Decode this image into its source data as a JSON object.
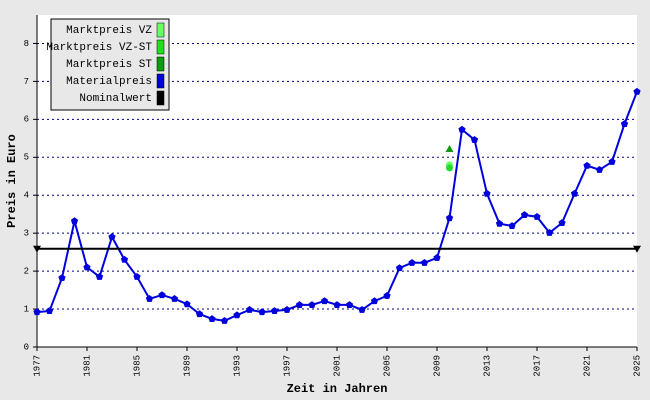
{
  "chart_data": {
    "type": "line",
    "x_label": "Zeit in Jahren",
    "y_label": "Preis in Euro",
    "xlim": [
      1977,
      2025
    ],
    "ylim": [
      0,
      8.75
    ],
    "xticks": [
      1977,
      1981,
      1985,
      1989,
      1993,
      1997,
      2001,
      2005,
      2009,
      2013,
      2017,
      2021,
      2025
    ],
    "yticks": [
      0,
      1,
      2,
      3,
      4,
      5,
      6,
      7,
      8
    ],
    "grid": true,
    "legend": "upper left",
    "series": [
      {
        "name": "Marktpreis VZ",
        "color": "#66ff66",
        "marker": "circle",
        "x": [
          2010
        ],
        "values": [
          4.8
        ]
      },
      {
        "name": "Marktpreis VZ-ST",
        "color": "#22dd22",
        "marker": "circle",
        "x": [
          2010
        ],
        "values": [
          4.72
        ]
      },
      {
        "name": "Marktpreis ST",
        "color": "#119911",
        "marker": "triangle",
        "x": [
          2010
        ],
        "values": [
          5.22
        ]
      },
      {
        "name": "Materialpreis",
        "color": "#0000dd",
        "marker": "pentagon",
        "x": [
          1977,
          1978,
          1979,
          1980,
          1981,
          1982,
          1983,
          1984,
          1985,
          1986,
          1987,
          1988,
          1989,
          1990,
          1991,
          1992,
          1993,
          1994,
          1995,
          1996,
          1997,
          1998,
          1999,
          2000,
          2001,
          2002,
          2003,
          2004,
          2005,
          2006,
          2007,
          2008,
          2009,
          2010,
          2011,
          2012,
          2013,
          2014,
          2015,
          2016,
          2017,
          2018,
          2019,
          2020,
          2021,
          2022,
          2023,
          2024,
          2025
        ],
        "values": [
          0.92,
          0.95,
          1.82,
          3.32,
          2.1,
          1.85,
          2.9,
          2.3,
          1.85,
          1.27,
          1.37,
          1.27,
          1.13,
          0.87,
          0.74,
          0.69,
          0.84,
          0.98,
          0.92,
          0.95,
          0.98,
          1.11,
          1.11,
          1.21,
          1.11,
          1.11,
          0.98,
          1.21,
          1.35,
          2.08,
          2.22,
          2.22,
          2.35,
          3.4,
          5.73,
          5.46,
          4.04,
          3.25,
          3.19,
          3.48,
          3.43,
          3.01,
          3.27,
          4.04,
          4.78,
          4.67,
          4.88,
          5.88,
          6.73
        ]
      },
      {
        "name": "Nominalwert",
        "color": "#000000",
        "marker": "triangle-down",
        "x": [
          1977,
          2025
        ],
        "values": [
          2.59,
          2.59
        ]
      }
    ]
  }
}
